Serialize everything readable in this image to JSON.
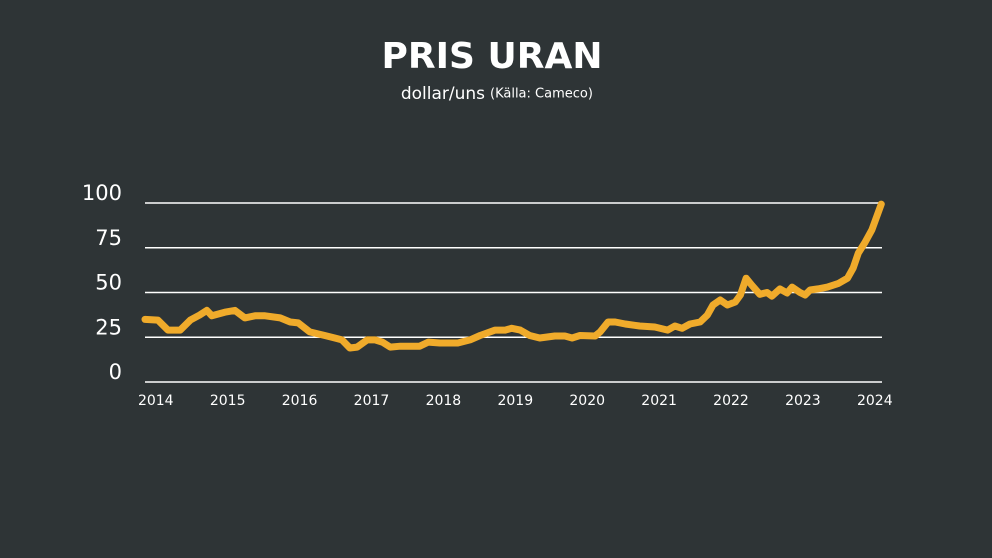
{
  "chart_data": {
    "type": "line",
    "title": "PRIS URAN",
    "subtitle": "dollar/uns",
    "source": "(Källa: Cameco)",
    "xlim": [
      2013.85,
      2024.1
    ],
    "xticks": [
      2014,
      2015,
      2016,
      2017,
      2018,
      2019,
      2020,
      2021,
      2022,
      2023,
      2024
    ],
    "ylim": [
      0,
      100
    ],
    "yticks": [
      0,
      25,
      50,
      75,
      100
    ],
    "grid": true,
    "x": [
      2013.85,
      2014.03,
      2014.17,
      2014.34,
      2014.48,
      2014.61,
      2014.71,
      2014.78,
      2014.96,
      2015.1,
      2015.24,
      2015.38,
      2015.52,
      2015.73,
      2015.87,
      2015.98,
      2016.14,
      2016.35,
      2016.49,
      2016.59,
      2016.7,
      2016.8,
      2016.94,
      2017.05,
      2017.15,
      2017.26,
      2017.4,
      2017.67,
      2017.79,
      2017.95,
      2018.2,
      2018.37,
      2018.51,
      2018.72,
      2018.86,
      2018.95,
      2019.07,
      2019.2,
      2019.34,
      2019.55,
      2019.69,
      2019.79,
      2019.9,
      2020.11,
      2020.18,
      2020.29,
      2020.39,
      2020.53,
      2020.73,
      2020.94,
      2021.12,
      2021.22,
      2021.32,
      2021.43,
      2021.57,
      2021.67,
      2021.75,
      2021.85,
      2021.95,
      2022.06,
      2022.13,
      2022.21,
      2022.29,
      2022.4,
      2022.5,
      2022.57,
      2022.68,
      2022.78,
      2022.85,
      2022.96,
      2023.03,
      2023.1,
      2023.21,
      2023.34,
      2023.49,
      2023.62,
      2023.7,
      2023.77,
      2023.86,
      2023.96,
      2024.09
    ],
    "series": [
      {
        "name": "Pris uran",
        "color": "#f0ab2b",
        "values": [
          35,
          34.6,
          29,
          29,
          34.6,
          37.4,
          40,
          37,
          39,
          40,
          35.8,
          37,
          37,
          35.8,
          33.5,
          33,
          28,
          26,
          24.6,
          23.5,
          19,
          19.5,
          23.5,
          23.5,
          22.3,
          19.5,
          20,
          20,
          22.3,
          21.8,
          21.8,
          23.5,
          26,
          29,
          29,
          30,
          29,
          26,
          24.6,
          25.7,
          25.7,
          24.6,
          26,
          25.7,
          28,
          33.5,
          33.5,
          32.4,
          31.3,
          30.7,
          29,
          31.3,
          30,
          32.4,
          33.5,
          37.4,
          43,
          45.8,
          43,
          44.7,
          48.6,
          58,
          54,
          49,
          50,
          48,
          52,
          49.7,
          53,
          50,
          48.6,
          51.4,
          52,
          53,
          55,
          58,
          63.7,
          72,
          77.7,
          85,
          99.4
        ]
      }
    ]
  }
}
